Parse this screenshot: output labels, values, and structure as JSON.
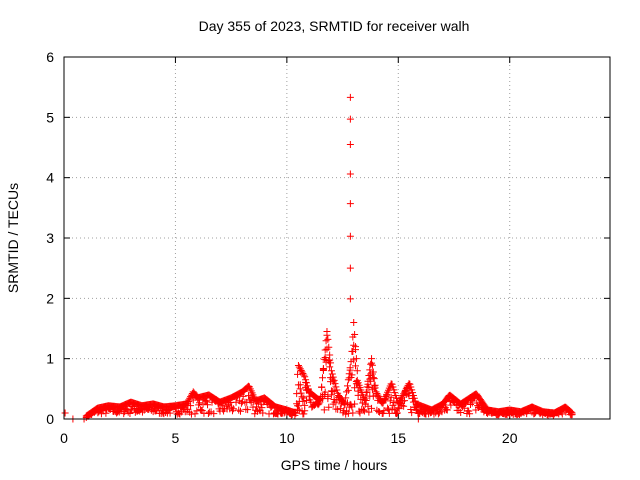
{
  "chart_data": {
    "type": "scatter",
    "title": "Day 355 of 2023, SRMTID for receiver walh",
    "xlabel": "GPS time / hours",
    "ylabel": "SRMTID / TECUs",
    "xlim": [
      0,
      24.5
    ],
    "ylim": [
      0,
      6
    ],
    "xticks": [
      0,
      5,
      10,
      15,
      20
    ],
    "yticks": [
      0,
      1,
      2,
      3,
      4,
      5,
      6
    ],
    "grid": true,
    "marker": "+",
    "color": "#ff0000",
    "series": [
      {
        "name": "SRMTID",
        "outliers": [
          {
            "x": 0.05,
            "y": 0.1
          },
          {
            "x": 0.4,
            "y": 0.0
          },
          {
            "x": 0.9,
            "y": 0.0
          },
          {
            "x": 15.9,
            "y": 0.0
          },
          {
            "x": 12.85,
            "y": 5.33
          },
          {
            "x": 12.85,
            "y": 4.97
          },
          {
            "x": 12.85,
            "y": 4.55
          },
          {
            "x": 12.85,
            "y": 4.06
          },
          {
            "x": 12.85,
            "y": 3.57
          },
          {
            "x": 12.85,
            "y": 3.03
          },
          {
            "x": 12.85,
            "y": 2.5
          },
          {
            "x": 12.85,
            "y": 1.99
          }
        ],
        "envelope": [
          [
            1.0,
            0.05
          ],
          [
            1.5,
            0.18
          ],
          [
            2.0,
            0.22
          ],
          [
            2.5,
            0.2
          ],
          [
            3.0,
            0.28
          ],
          [
            3.5,
            0.22
          ],
          [
            4.0,
            0.25
          ],
          [
            4.5,
            0.2
          ],
          [
            5.0,
            0.22
          ],
          [
            5.5,
            0.25
          ],
          [
            5.8,
            0.45
          ],
          [
            6.0,
            0.35
          ],
          [
            6.5,
            0.4
          ],
          [
            7.0,
            0.28
          ],
          [
            7.5,
            0.35
          ],
          [
            8.0,
            0.45
          ],
          [
            8.3,
            0.55
          ],
          [
            8.6,
            0.3
          ],
          [
            9.0,
            0.35
          ],
          [
            9.5,
            0.2
          ],
          [
            10.0,
            0.15
          ],
          [
            10.4,
            0.1
          ],
          [
            10.5,
            0.9
          ],
          [
            10.8,
            0.7
          ],
          [
            11.0,
            0.45
          ],
          [
            11.5,
            0.3
          ],
          [
            11.8,
            1.45
          ],
          [
            12.0,
            0.8
          ],
          [
            12.3,
            0.4
          ],
          [
            12.6,
            0.25
          ],
          [
            12.9,
            1.0
          ],
          [
            13.0,
            1.6
          ],
          [
            13.2,
            0.6
          ],
          [
            13.5,
            0.3
          ],
          [
            13.8,
            1.0
          ],
          [
            14.0,
            0.45
          ],
          [
            14.3,
            0.25
          ],
          [
            14.7,
            0.6
          ],
          [
            15.0,
            0.25
          ],
          [
            15.5,
            0.6
          ],
          [
            15.8,
            0.25
          ],
          [
            16.5,
            0.15
          ],
          [
            17.0,
            0.25
          ],
          [
            17.3,
            0.4
          ],
          [
            17.8,
            0.25
          ],
          [
            18.5,
            0.42
          ],
          [
            19.0,
            0.15
          ],
          [
            19.5,
            0.12
          ],
          [
            20.0,
            0.15
          ],
          [
            20.5,
            0.12
          ],
          [
            21.0,
            0.2
          ],
          [
            21.5,
            0.12
          ],
          [
            22.0,
            0.1
          ],
          [
            22.5,
            0.2
          ],
          [
            22.8,
            0.1
          ]
        ]
      }
    ]
  }
}
